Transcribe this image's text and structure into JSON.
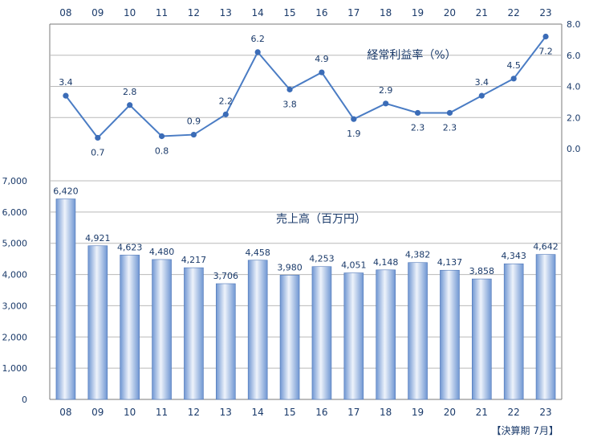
{
  "chart_data": [
    {
      "type": "line",
      "title": "経常利益率（%）",
      "categories": [
        "08",
        "09",
        "10",
        "11",
        "12",
        "13",
        "14",
        "15",
        "16",
        "17",
        "18",
        "19",
        "20",
        "21",
        "22",
        "23"
      ],
      "values": [
        3.4,
        0.7,
        2.8,
        0.8,
        0.9,
        2.2,
        6.2,
        3.8,
        4.9,
        1.9,
        2.9,
        2.3,
        2.3,
        3.4,
        4.5,
        7.2
      ],
      "ylim": [
        0,
        8
      ],
      "yticks": [
        "0.0",
        "2.0",
        "4.0",
        "6.0",
        "8.0"
      ],
      "y_axis_side": "right",
      "x_axis_side": "top",
      "grid": true,
      "colors": {
        "line": "#4a7cc4",
        "marker": "#3b6cb7",
        "text": "#1a3a6a",
        "grid": "#7a7a7a"
      }
    },
    {
      "type": "bar",
      "title": "売上高（百万円）",
      "categories": [
        "08",
        "09",
        "10",
        "11",
        "12",
        "13",
        "14",
        "15",
        "16",
        "17",
        "18",
        "19",
        "20",
        "21",
        "22",
        "23"
      ],
      "values": [
        6420,
        4921,
        4623,
        4480,
        4217,
        3706,
        4458,
        3980,
        4253,
        4051,
        4148,
        4382,
        4137,
        3858,
        4343,
        4642
      ],
      "value_labels": [
        "6,420",
        "4,921",
        "4,623",
        "4,480",
        "4,217",
        "3,706",
        "4,458",
        "3,980",
        "4,253",
        "4,051",
        "4,148",
        "4,382",
        "4,137",
        "3,858",
        "4,343",
        "4,642"
      ],
      "ylim": [
        0,
        7000
      ],
      "yticks": [
        "0",
        "1,000",
        "2,000",
        "3,000",
        "4,000",
        "5,000",
        "6,000",
        "7,000"
      ],
      "y_axis_side": "left",
      "x_axis_side": "bottom",
      "grid": true,
      "colors": {
        "bar_light": "#eef3fb",
        "bar_dark": "#6f96d2",
        "bar_edge": "#4f77b8",
        "text": "#1a3a6a",
        "grid": "#7a7a7a"
      }
    }
  ],
  "footer_note": "【決算期 7月】"
}
